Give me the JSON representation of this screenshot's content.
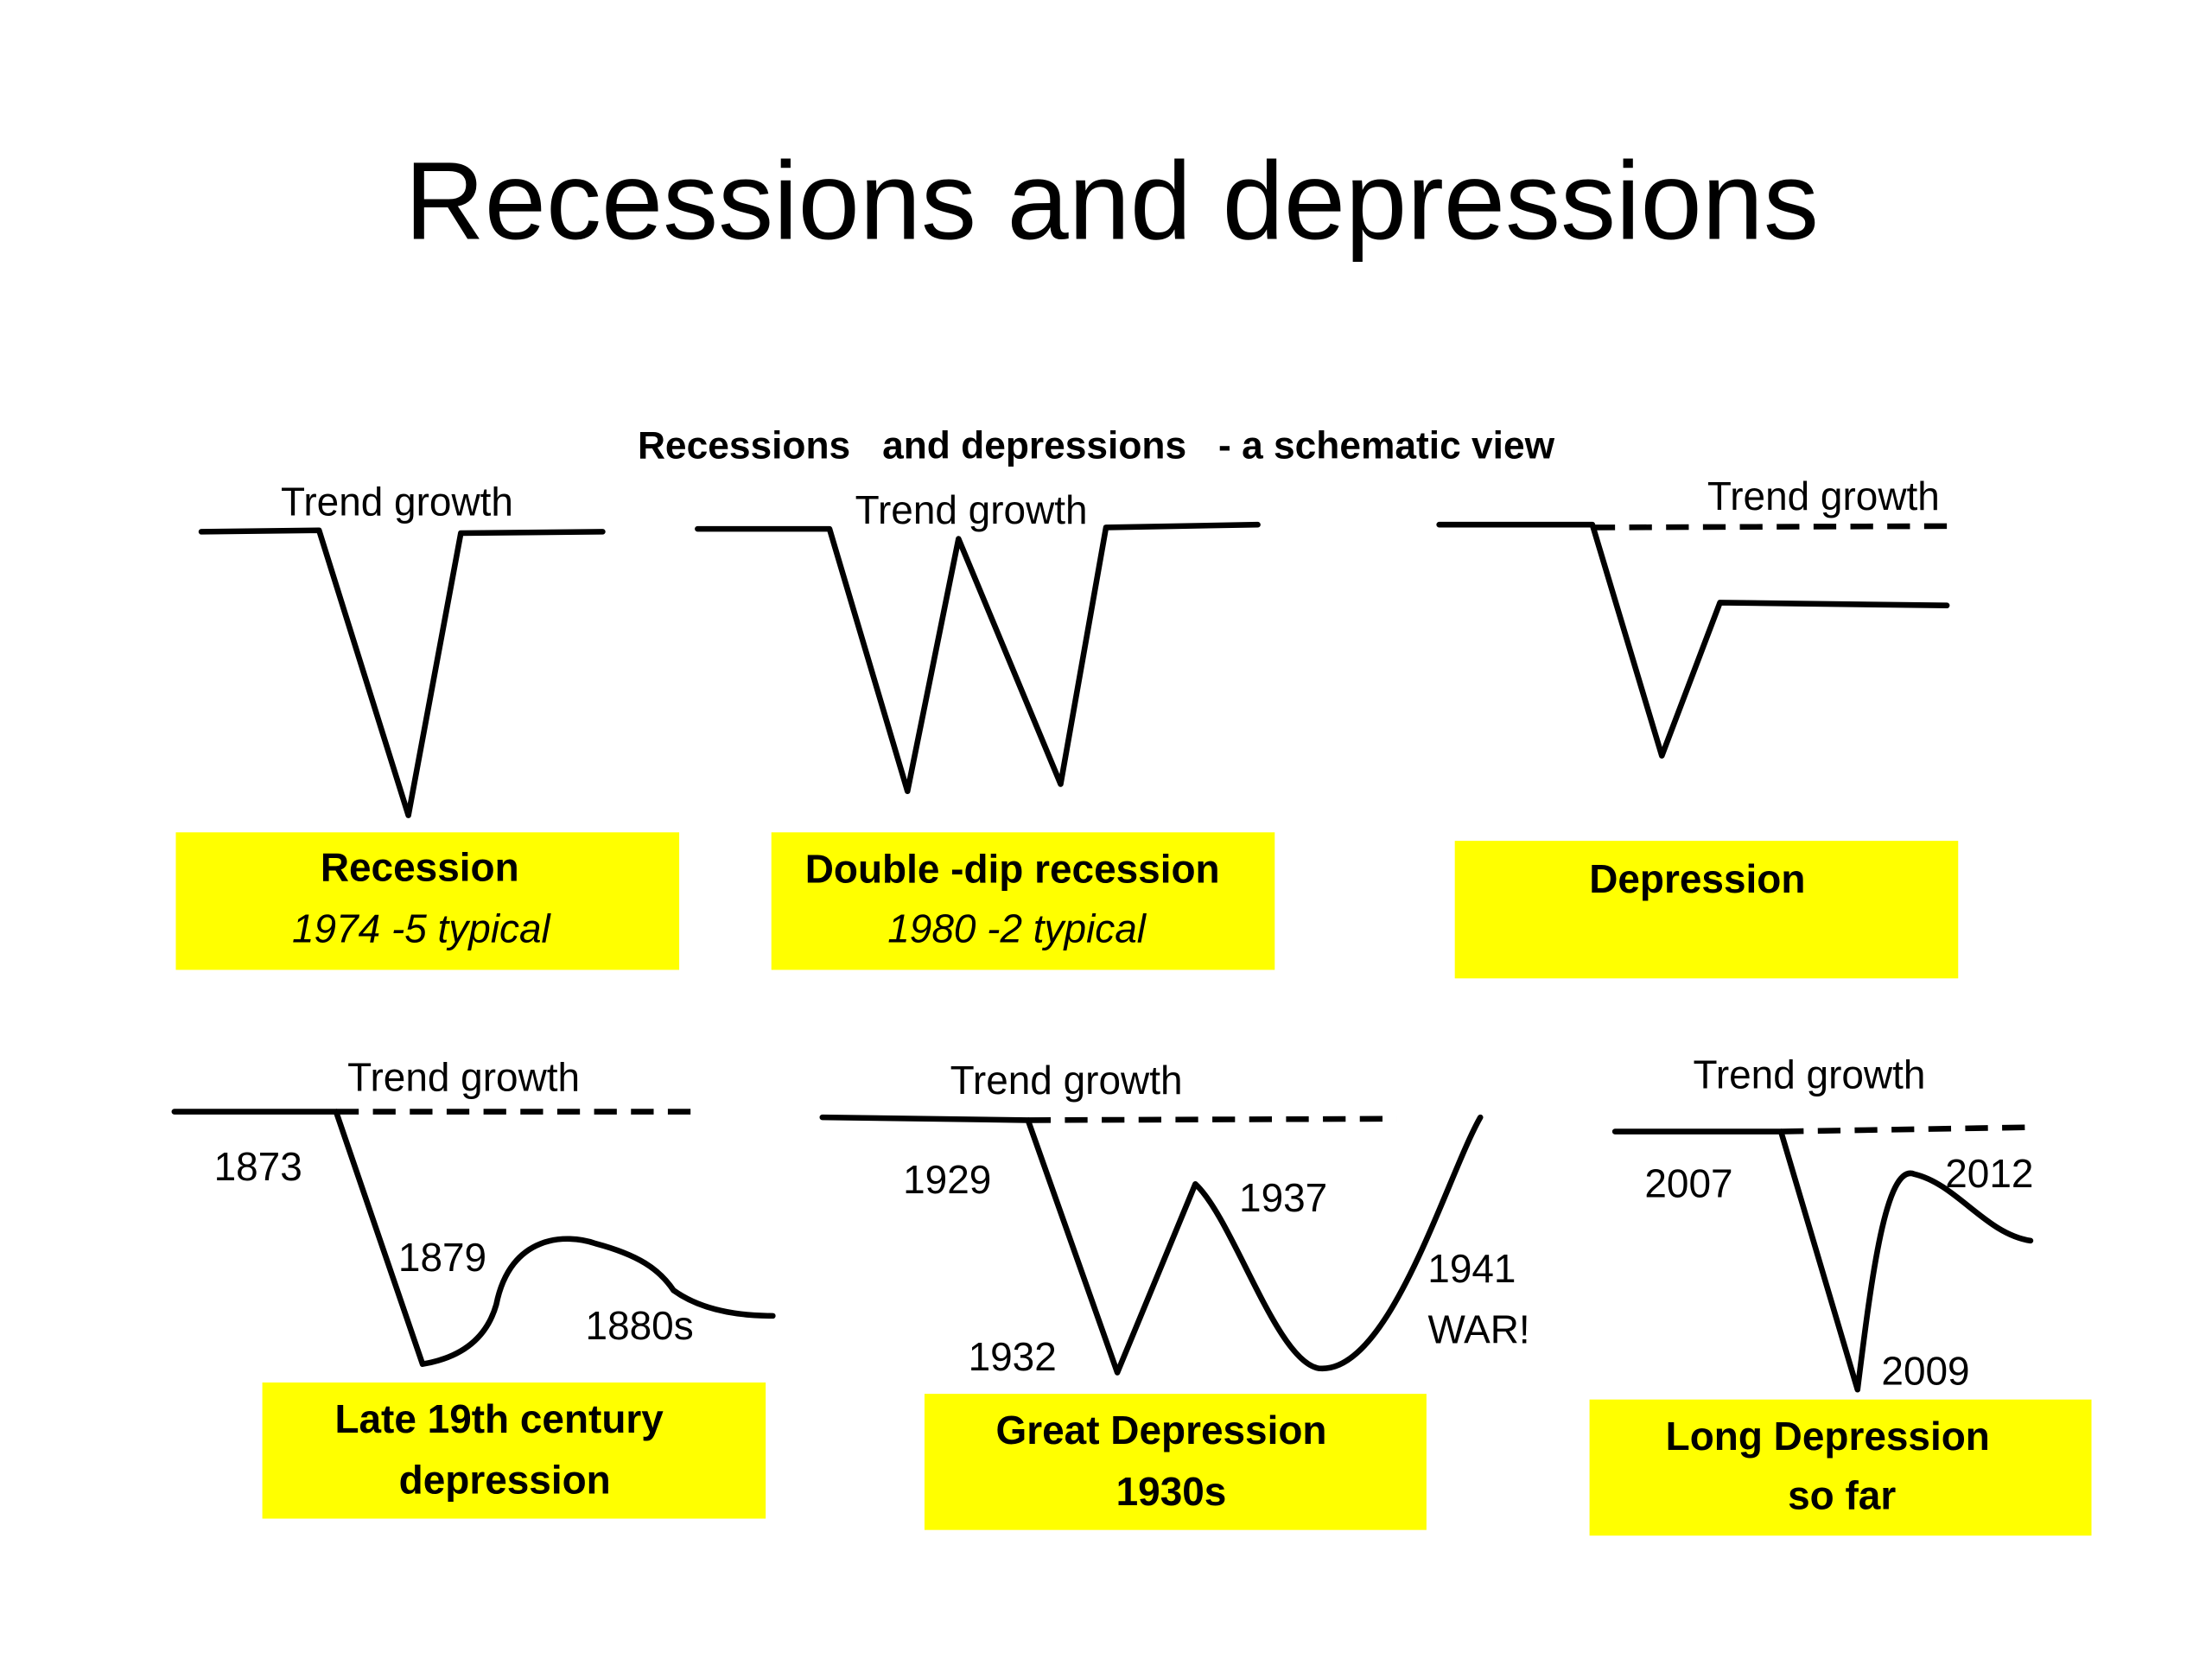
{
  "title": "Recessions and depressions",
  "subtitle": "Recessions   and depressions   - a schematic view",
  "panels": [
    {
      "trend_label": "Trend growth",
      "caption": [
        "Recession",
        "1974 -5 typical"
      ]
    },
    {
      "trend_label": "Trend growth",
      "caption": [
        "Double -dip recession",
        "1980 -2 typical"
      ]
    },
    {
      "trend_label": "Trend growth",
      "caption": [
        "Depression"
      ]
    },
    {
      "trend_label": "Trend growth",
      "years": [
        "1873",
        "1879",
        "1880s"
      ],
      "caption": [
        "Late 19th century",
        "depression"
      ]
    },
    {
      "trend_label": "Trend growth",
      "years": [
        "1929",
        "1937",
        "1932",
        "1941",
        "WAR!"
      ],
      "caption": [
        "Great Depression",
        "1930s"
      ]
    },
    {
      "trend_label": "Trend growth",
      "years": [
        "2007",
        "2012",
        "2009"
      ],
      "caption": [
        "Long Depression",
        "so far"
      ]
    }
  ]
}
